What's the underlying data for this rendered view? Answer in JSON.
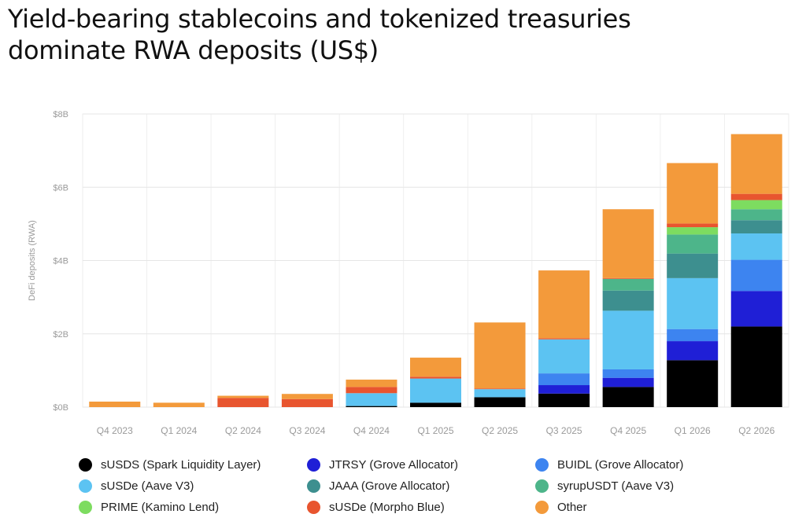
{
  "title_lines": [
    "Yield-bearing stablecoins and tokenized treasuries",
    "dominate RWA deposits (US$)"
  ],
  "chart_data": {
    "type": "bar",
    "stacked": true,
    "ylabel": "DeFi deposits (RWA)",
    "xlabel": "",
    "ylim": [
      0,
      8
    ],
    "yticks": [
      0,
      2,
      4,
      6,
      8
    ],
    "ytick_labels": [
      "$0B",
      "$2B",
      "$4B",
      "$6B",
      "$8B"
    ],
    "grid": true,
    "legend_position": "bottom",
    "categories": [
      "Q4 2023",
      "Q1 2024",
      "Q2 2024",
      "Q3 2024",
      "Q4 2024",
      "Q1 2025",
      "Q2 2025",
      "Q3 2025",
      "Q4 2025",
      "Q1 2026",
      "Q2 2026"
    ],
    "series": [
      {
        "name": "sUSDS (Spark Liquidity Layer)",
        "color": "#000000",
        "values": [
          0,
          0,
          0,
          0,
          0.03,
          0.12,
          0.27,
          0.37,
          0.55,
          1.28,
          2.2
        ]
      },
      {
        "name": "JTRSY (Grove Allocator)",
        "color": "#1f1fd6",
        "values": [
          0,
          0,
          0,
          0,
          0,
          0,
          0,
          0.23,
          0.25,
          0.52,
          0.97
        ]
      },
      {
        "name": "BUIDL (Grove Allocator)",
        "color": "#3d84f0",
        "values": [
          0,
          0,
          0,
          0,
          0,
          0,
          0,
          0.32,
          0.23,
          0.33,
          0.85
        ]
      },
      {
        "name": "sUSDe (Aave V3)",
        "color": "#5cc3f2",
        "values": [
          0,
          0,
          0,
          0,
          0.35,
          0.66,
          0.22,
          0.93,
          1.6,
          1.39,
          0.72
        ]
      },
      {
        "name": "JAAA (Grove Allocator)",
        "color": "#3d8f8f",
        "values": [
          0,
          0,
          0,
          0,
          0,
          0,
          0,
          0,
          0.55,
          0.67,
          0.36
        ]
      },
      {
        "name": "syrupUSDT (Aave V3)",
        "color": "#4db58a",
        "values": [
          0,
          0,
          0,
          0,
          0,
          0,
          0,
          0,
          0.32,
          0.52,
          0.3
        ]
      },
      {
        "name": "PRIME (Kamino Lend)",
        "color": "#7ddc60",
        "values": [
          0,
          0,
          0,
          0,
          0,
          0,
          0,
          0,
          0,
          0.2,
          0.25
        ]
      },
      {
        "name": "sUSDe (Morpho Blue)",
        "color": "#e8552f",
        "values": [
          0,
          0,
          0.25,
          0.22,
          0.17,
          0.05,
          0.02,
          0.03,
          0.02,
          0.1,
          0.17
        ]
      },
      {
        "name": "Other",
        "color": "#f39a3b",
        "values": [
          0.15,
          0.12,
          0.06,
          0.14,
          0.2,
          0.52,
          1.8,
          1.85,
          1.88,
          1.65,
          1.63
        ]
      }
    ],
    "legend_order": [
      0,
      1,
      2,
      3,
      4,
      5,
      6,
      7,
      8
    ]
  }
}
